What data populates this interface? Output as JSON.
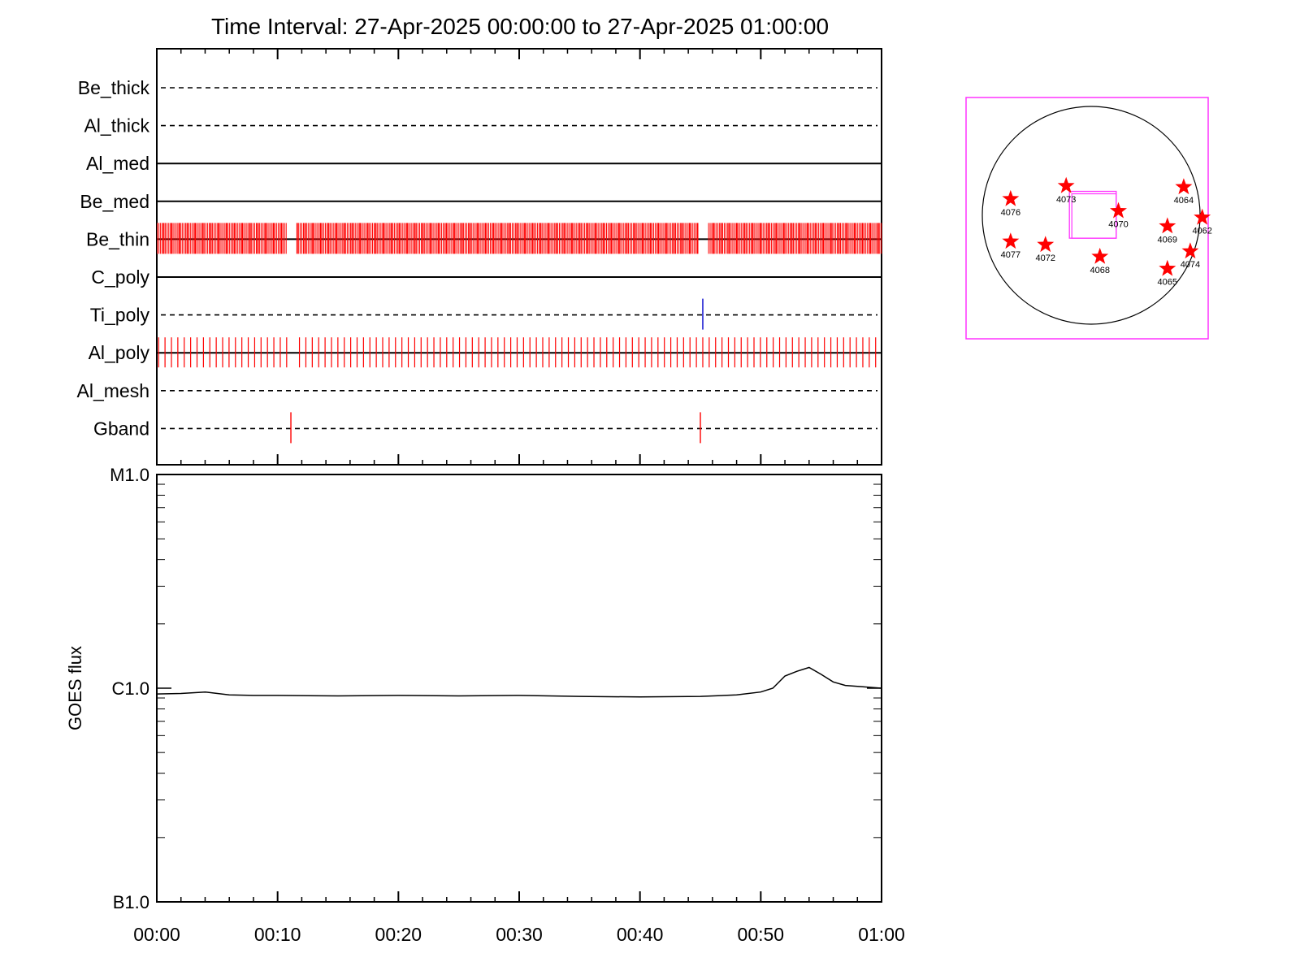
{
  "title": "Time Interval: 27-Apr-2025 00:00:00 to 27-Apr-2025 01:00:00",
  "colors": {
    "axis": "#000000",
    "frame": "#ff33ff",
    "marks_red": "#ff0000",
    "marks_blue": "#0000cc",
    "trace": "#000000"
  },
  "chart_data": [
    {
      "type": "timeline",
      "x_tick_labels": [
        "00:00",
        "00:10",
        "00:20",
        "00:30",
        "00:40",
        "00:50",
        "01:00"
      ],
      "x_range_minutes": [
        0,
        60
      ],
      "channels": [
        {
          "name": "Be_thick",
          "line": "dashed",
          "marks": []
        },
        {
          "name": "Al_thick",
          "line": "dashed",
          "marks": []
        },
        {
          "name": "Al_med",
          "line": "solid",
          "marks": []
        },
        {
          "name": "Be_med",
          "line": "solid",
          "marks": []
        },
        {
          "name": "Be_thin",
          "line": "solid",
          "marks": "dense",
          "mark_color": "#ff0000",
          "gaps_minutes": [
            [
              10.8,
              11.6
            ],
            [
              44.9,
              45.6
            ]
          ]
        },
        {
          "name": "C_poly",
          "line": "solid",
          "marks": []
        },
        {
          "name": "Ti_poly",
          "line": "dashed",
          "marks": [
            45.2
          ],
          "mark_color": "#0000cc"
        },
        {
          "name": "Al_poly",
          "line": "solid",
          "marks": "regular",
          "mark_color": "#ff0000",
          "gaps_minutes": [
            [
              10.9,
              11.8
            ]
          ]
        },
        {
          "name": "Al_mesh",
          "line": "dashed",
          "marks": []
        },
        {
          "name": "Gband",
          "line": "dashed",
          "marks": [
            11.1,
            45.0
          ],
          "mark_color": "#ff0000"
        }
      ]
    },
    {
      "type": "line",
      "ylabel": "GOES flux",
      "y_scale": "log",
      "y_tick_labels": [
        "B1.0",
        "C1.0",
        "M1.0"
      ],
      "y_tick_values": [
        1e-07,
        1e-06,
        1e-05
      ],
      "ylim": [
        1e-07,
        1e-05
      ],
      "x": [
        0,
        2,
        4,
        6,
        8,
        10,
        15,
        20,
        25,
        30,
        35,
        40,
        45,
        48,
        50,
        51,
        52,
        53,
        54,
        55,
        56,
        57,
        58,
        60
      ],
      "y": [
        9.4e-07,
        9.45e-07,
        9.6e-07,
        9.3e-07,
        9.25e-07,
        9.25e-07,
        9.2e-07,
        9.25e-07,
        9.2e-07,
        9.25e-07,
        9.15e-07,
        9.1e-07,
        9.15e-07,
        9.3e-07,
        9.6e-07,
        1e-06,
        1.14e-06,
        1.2e-06,
        1.25e-06,
        1.16e-06,
        1.07e-06,
        1.03e-06,
        1.02e-06,
        1e-06
      ]
    },
    {
      "type": "diagram",
      "regions": [
        {
          "label": "4076",
          "x": -0.74,
          "y": 0.15
        },
        {
          "label": "4073",
          "x": -0.23,
          "y": 0.27
        },
        {
          "label": "4070",
          "x": 0.25,
          "y": 0.04
        },
        {
          "label": "4064",
          "x": 0.85,
          "y": 0.26
        },
        {
          "label": "4062",
          "x": 1.02,
          "y": -0.02
        },
        {
          "label": "4069",
          "x": 0.7,
          "y": -0.1
        },
        {
          "label": "4077",
          "x": -0.74,
          "y": -0.24
        },
        {
          "label": "4072",
          "x": -0.42,
          "y": -0.27
        },
        {
          "label": "4068",
          "x": 0.08,
          "y": -0.38
        },
        {
          "label": "4074",
          "x": 0.91,
          "y": -0.33
        },
        {
          "label": "4065",
          "x": 0.7,
          "y": -0.49
        }
      ],
      "fov": {
        "x0": -0.2,
        "x1": 0.23,
        "y0": 0.22,
        "y1": -0.21
      }
    }
  ]
}
